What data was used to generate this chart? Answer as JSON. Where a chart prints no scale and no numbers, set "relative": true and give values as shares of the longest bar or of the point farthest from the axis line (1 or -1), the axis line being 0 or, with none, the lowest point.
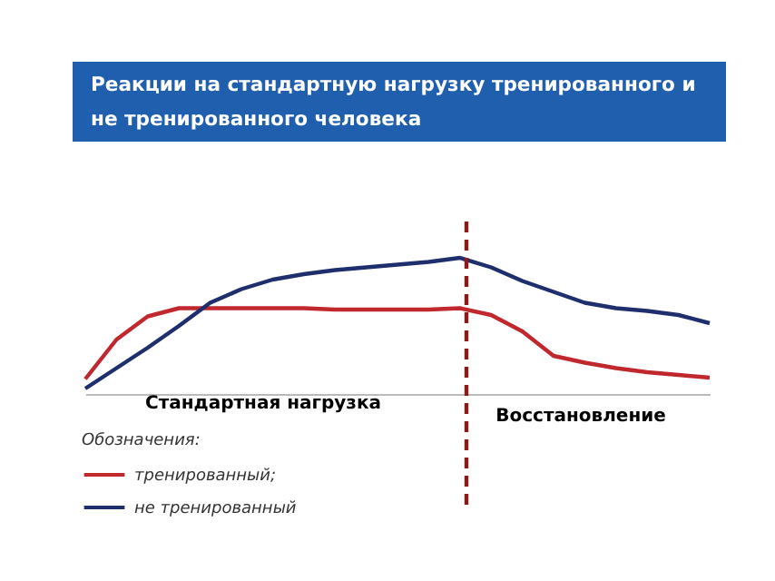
{
  "chart_data": {
    "type": "line",
    "relative": true,
    "title": "Реакции на стандартную нагрузку тренированного и не тренированного человека",
    "legend_title": "Обозначения:",
    "legend": "bottom left",
    "marker": "none",
    "line_style": "solid",
    "annotations": [
      "Стандартная нагрузка",
      "Восстановление"
    ],
    "categories": [
      null,
      null,
      null,
      null,
      null,
      null,
      null,
      null,
      null,
      null,
      null,
      null,
      null,
      null,
      null,
      null,
      null,
      null,
      null,
      null,
      null
    ],
    "series": [
      {
        "name": "тренированный;",
        "color": "#c0282d",
        "values": [
          0.11,
          0.4,
          0.57,
          0.63,
          0.63,
          0.63,
          0.63,
          0.63,
          0.62,
          0.62,
          0.62,
          0.62,
          0.63,
          0.58,
          0.46,
          0.28,
          0.23,
          0.19,
          0.16,
          0.14,
          0.12
        ]
      },
      {
        "name": "не тренированный",
        "color": "#1f2f6e",
        "values": [
          0.04,
          0.19,
          0.34,
          0.5,
          0.67,
          0.77,
          0.84,
          0.88,
          0.91,
          0.93,
          0.95,
          0.97,
          1,
          0.93,
          0.83,
          0.75,
          0.67,
          0.63,
          0.61,
          0.58,
          0.52
        ]
      }
    ]
  }
}
